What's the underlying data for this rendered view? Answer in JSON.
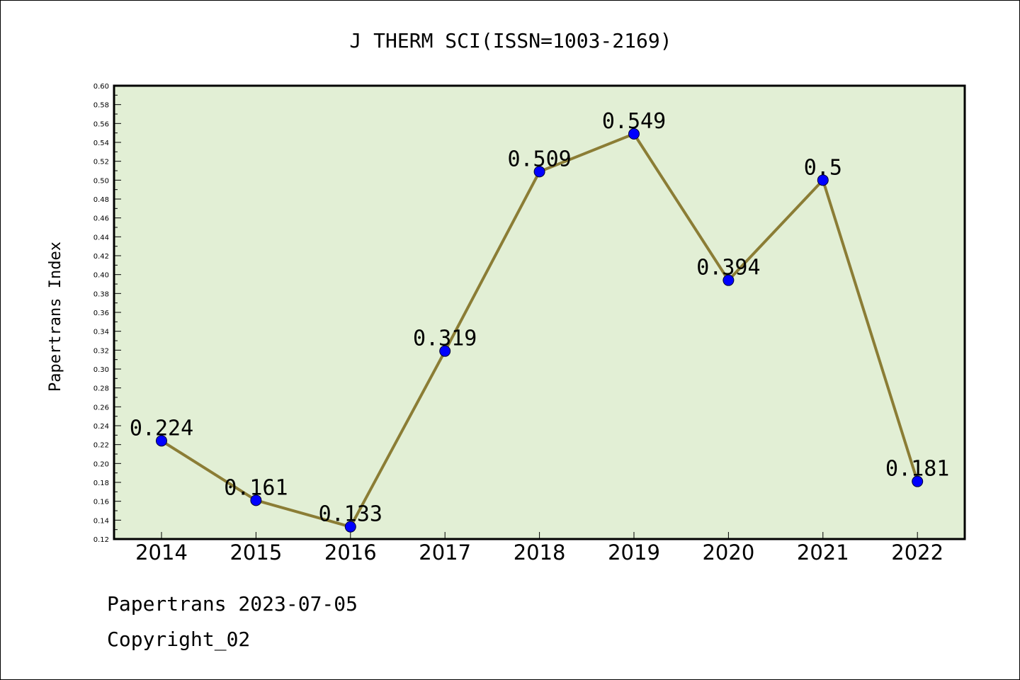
{
  "chart_data": {
    "type": "line",
    "title": "J THERM SCI(ISSN=1003-2169)",
    "ylabel": "Papertrans Index",
    "xlabel": "",
    "categories": [
      "2014",
      "2015",
      "2016",
      "2017",
      "2018",
      "2019",
      "2020",
      "2021",
      "2022"
    ],
    "values": [
      0.224,
      0.161,
      0.133,
      0.319,
      0.509,
      0.549,
      0.394,
      0.5,
      0.181
    ],
    "data_labels": [
      "0.224",
      "0.161",
      "0.133",
      "0.319",
      "0.509",
      "0.549",
      "0.394",
      "0.5",
      "0.181"
    ],
    "ylim": [
      0.12,
      0.6
    ],
    "y_ticks": [
      "0.12",
      "0.14",
      "0.16",
      "0.18",
      "0.20",
      "0.22",
      "0.24",
      "0.26",
      "0.28",
      "0.30",
      "0.32",
      "0.34",
      "0.36",
      "0.38",
      "0.40",
      "0.42",
      "0.44",
      "0.46",
      "0.48",
      "0.50",
      "0.52",
      "0.54",
      "0.56",
      "0.58",
      "0.60"
    ],
    "grid": false,
    "colors": {
      "plot_background": "#e2efd5",
      "line": "#8b7d35",
      "marker": "#0000ff",
      "axis": "#000000"
    }
  },
  "footer": {
    "line1": "Papertrans 2023-07-05",
    "line2": "Copyright_02"
  }
}
